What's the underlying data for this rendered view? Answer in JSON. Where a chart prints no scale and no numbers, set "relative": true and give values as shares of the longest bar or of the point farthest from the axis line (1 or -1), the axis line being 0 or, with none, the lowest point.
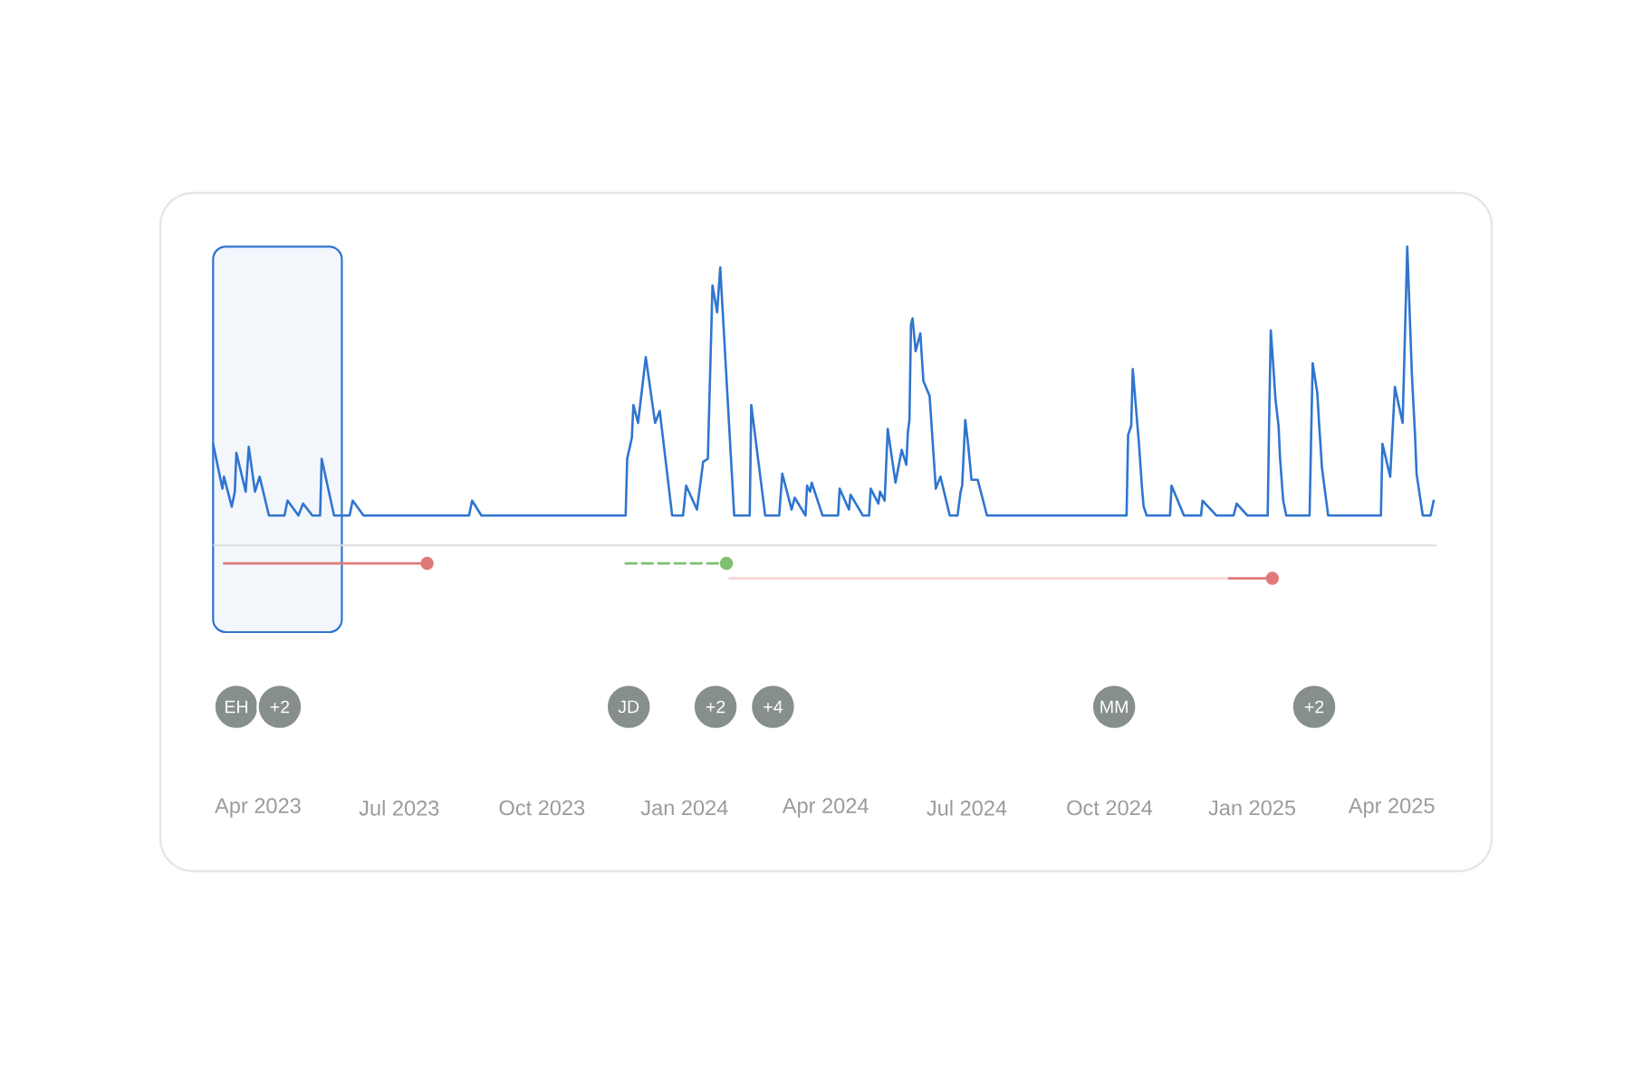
{
  "chart_data": {
    "type": "line",
    "relative": true,
    "xlim": [
      "2023-03-03",
      "2025-04-30"
    ],
    "xticks": [
      {
        "value": "2023-04-01",
        "label": "Apr 2023"
      },
      {
        "value": "2023-07-01",
        "label": "Jul 2023"
      },
      {
        "value": "2023-10-01",
        "label": "Oct 2023"
      },
      {
        "value": "2024-01-01",
        "label": "Jan 2024"
      },
      {
        "value": "2024-04-01",
        "label": "Apr 2024"
      },
      {
        "value": "2024-07-01",
        "label": "Jul 2024"
      },
      {
        "value": "2024-10-01",
        "label": "Oct 2024"
      },
      {
        "value": "2025-01-01",
        "label": "Jan 2025"
      },
      {
        "value": "2025-04-01",
        "label": "Apr 2025"
      }
    ],
    "series": [
      {
        "color": "#2f75d0",
        "x": [
          "2023-03-03",
          "2023-03-09",
          "2023-03-10",
          "2023-03-15",
          "2023-03-17",
          "2023-03-18",
          "2023-03-24",
          "2023-03-26",
          "2023-03-30",
          "2023-04-02",
          "2023-04-08",
          "2023-04-18",
          "2023-04-20",
          "2023-04-27",
          "2023-04-30",
          "2023-05-06",
          "2023-05-11",
          "2023-05-12",
          "2023-05-20",
          "2023-05-30",
          "2023-06-01",
          "2023-06-08",
          "2023-08-15",
          "2023-08-17",
          "2023-08-23",
          "2023-11-24",
          "2023-11-25",
          "2023-11-28",
          "2023-11-29",
          "2023-12-02",
          "2023-12-07",
          "2023-12-13",
          "2023-12-16",
          "2023-12-24",
          "2023-12-31",
          "2024-01-02",
          "2024-01-09",
          "2024-01-13",
          "2024-01-16",
          "2024-01-19",
          "2024-01-22",
          "2024-01-24",
          "2024-02-02",
          "2024-02-12",
          "2024-02-13",
          "2024-02-22",
          "2024-03-02",
          "2024-03-04",
          "2024-03-10",
          "2024-03-12",
          "2024-03-19",
          "2024-03-20",
          "2024-03-22",
          "2024-03-23",
          "2024-03-30",
          "2024-04-09",
          "2024-04-10",
          "2024-04-16",
          "2024-04-17",
          "2024-04-25",
          "2024-04-29",
          "2024-04-30",
          "2024-05-05",
          "2024-05-06",
          "2024-05-09",
          "2024-05-11",
          "2024-05-16",
          "2024-05-20",
          "2024-05-23",
          "2024-05-24",
          "2024-05-25",
          "2024-05-26",
          "2024-05-27",
          "2024-05-29",
          "2024-06-01",
          "2024-06-03",
          "2024-06-07",
          "2024-06-11",
          "2024-06-14",
          "2024-06-20",
          "2024-06-22",
          "2024-06-25",
          "2024-06-27",
          "2024-06-28",
          "2024-06-30",
          "2024-07-02",
          "2024-07-04",
          "2024-07-08",
          "2024-07-14",
          "2024-10-12",
          "2024-10-13",
          "2024-10-15",
          "2024-10-16",
          "2024-10-20",
          "2024-10-22",
          "2024-10-23",
          "2024-10-25",
          "2024-11-09",
          "2024-11-10",
          "2024-11-18",
          "2024-11-29",
          "2024-11-30",
          "2024-12-09",
          "2024-12-20",
          "2024-12-22",
          "2024-12-29",
          "2025-01-11",
          "2025-01-12",
          "2025-01-13",
          "2025-01-15",
          "2025-01-16",
          "2025-01-18",
          "2025-01-19",
          "2025-01-21",
          "2025-01-23",
          "2025-02-07",
          "2025-02-08",
          "2025-02-09",
          "2025-02-12",
          "2025-02-13",
          "2025-02-14",
          "2025-02-15",
          "2025-02-19",
          "2025-03-25",
          "2025-03-26",
          "2025-03-31",
          "2025-04-01",
          "2025-04-03",
          "2025-04-08",
          "2025-04-11",
          "2025-04-14",
          "2025-04-16",
          "2025-04-17",
          "2025-04-21",
          "2025-04-26",
          "2025-04-28"
        ],
        "values": [
          0.34,
          0.19,
          0.23,
          0.13,
          0.18,
          0.31,
          0.18,
          0.33,
          0.18,
          0.23,
          0.1,
          0.1,
          0.15,
          0.1,
          0.14,
          0.1,
          0.1,
          0.29,
          0.1,
          0.1,
          0.15,
          0.1,
          0.1,
          0.15,
          0.1,
          0.1,
          0.29,
          0.36,
          0.47,
          0.41,
          0.63,
          0.41,
          0.45,
          0.1,
          0.1,
          0.2,
          0.12,
          0.28,
          0.29,
          0.87,
          0.78,
          0.93,
          0.1,
          0.1,
          0.47,
          0.1,
          0.1,
          0.24,
          0.12,
          0.16,
          0.1,
          0.2,
          0.18,
          0.21,
          0.1,
          0.1,
          0.19,
          0.12,
          0.17,
          0.1,
          0.1,
          0.19,
          0.14,
          0.18,
          0.15,
          0.39,
          0.21,
          0.32,
          0.27,
          0.38,
          0.42,
          0.74,
          0.76,
          0.65,
          0.71,
          0.55,
          0.5,
          0.19,
          0.23,
          0.1,
          0.1,
          0.1,
          0.18,
          0.2,
          0.42,
          0.33,
          0.22,
          0.22,
          0.1,
          0.1,
          0.37,
          0.4,
          0.59,
          0.34,
          0.19,
          0.13,
          0.1,
          0.1,
          0.2,
          0.1,
          0.1,
          0.15,
          0.1,
          0.1,
          0.14,
          0.1,
          0.1,
          0.44,
          0.72,
          0.57,
          0.49,
          0.4,
          0.29,
          0.15,
          0.1,
          0.1,
          0.36,
          0.61,
          0.51,
          0.42,
          0.34,
          0.26,
          0.1,
          0.1,
          0.34,
          0.23,
          0.33,
          0.53,
          0.41,
          1.0,
          0.57,
          0.37,
          0.24,
          0.1,
          0.1,
          0.15
        ]
      },
      {
        "color": "#e07a7a",
        "x": [
          "2023-03-10",
          "2023-07-19"
        ],
        "values": [
          -0.06,
          -0.06
        ],
        "marker": "circle"
      },
      {
        "color": "#7fbf6e",
        "x": [
          "2023-11-24",
          "2024-01-28"
        ],
        "values": [
          -0.06,
          -0.06
        ],
        "marker": "circle",
        "line_style": "dashed"
      },
      {
        "color": "#f6d6d6",
        "x": [
          "2024-01-30",
          "2024-12-17"
        ],
        "values": [
          -0.11,
          -0.11
        ]
      },
      {
        "color": "#e07a7a",
        "x": [
          "2024-12-17",
          "2025-01-14"
        ],
        "values": [
          -0.11,
          -0.11
        ],
        "marker": "circle"
      },
      {
        "type": "scatter",
        "color": "#868e8e",
        "marker": "circle",
        "x": [
          "2023-03-18",
          "2023-04-15",
          "2023-11-26",
          "2024-01-21",
          "2024-02-27",
          "2024-10-04",
          "2025-02-10"
        ],
        "values": [
          -0.54,
          -0.54,
          -0.54,
          -0.54,
          -0.54,
          -0.54,
          -0.54
        ]
      }
    ],
    "bands": [
      {
        "axis": "x",
        "from": "2023-03-03",
        "to": "2023-05-25",
        "color": "#2f75d0"
      }
    ],
    "annotations": [
      {
        "text": "EH",
        "x": "2023-03-18",
        "y": -0.54
      },
      {
        "text": "+2",
        "x": "2023-04-15",
        "y": -0.54
      },
      {
        "text": "JD",
        "x": "2023-11-26",
        "y": -0.54
      },
      {
        "text": "+2",
        "x": "2024-01-21",
        "y": -0.54
      },
      {
        "text": "+4",
        "x": "2024-02-27",
        "y": -0.54
      },
      {
        "text": "MM",
        "x": "2024-10-04",
        "y": -0.54
      },
      {
        "text": "+2",
        "x": "2025-02-10",
        "y": -0.54
      }
    ]
  }
}
